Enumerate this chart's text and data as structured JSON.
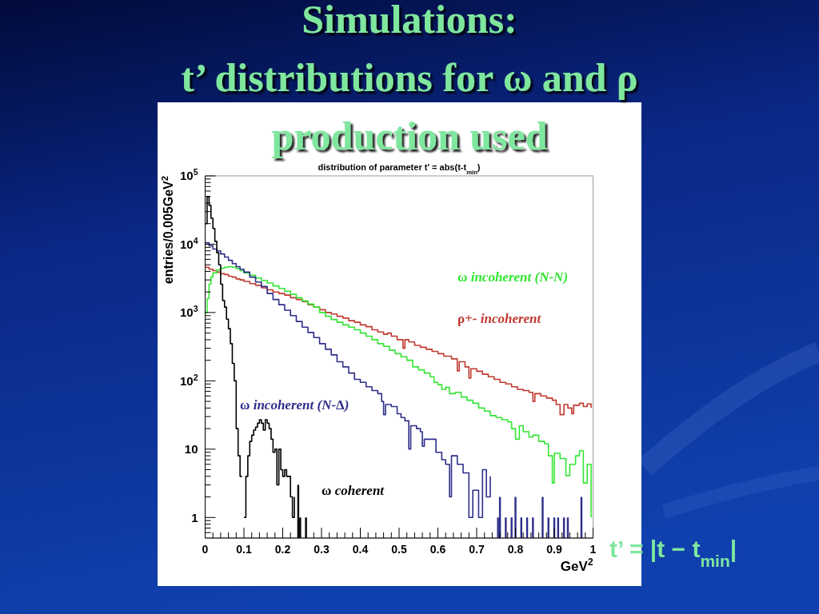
{
  "chart_data": {
    "type": "step",
    "title": "Simulations:\nt’ distributions for ω and ρ\nproduction used",
    "subtitle": "distribution of parameter t' = abs(t-t$_{min}$)",
    "xlabel": "GeV$^{2}$",
    "ylabel": "entries/0.005GeV$^{2}$",
    "annotations": [
      "t’ = |t − t$_{min}$|"
    ],
    "log": true,
    "xlim": [
      0,
      1
    ],
    "ylim": [
      0.5,
      100000
    ],
    "xticks": [
      0,
      {
        "value": 0.02,
        "label": null
      },
      {
        "value": 0.04,
        "label": null
      },
      {
        "value": 0.06,
        "label": null
      },
      {
        "value": 0.08,
        "label": null
      },
      0.1,
      {
        "value": 0.12,
        "label": null
      },
      {
        "value": 0.14,
        "label": null
      },
      {
        "value": 0.16,
        "label": null
      },
      {
        "value": 0.18,
        "label": null
      },
      0.2,
      {
        "value": 0.22,
        "label": null
      },
      {
        "value": 0.24,
        "label": null
      },
      {
        "value": 0.26,
        "label": null
      },
      {
        "value": 0.28,
        "label": null
      },
      0.3,
      {
        "value": 0.32,
        "label": null
      },
      {
        "value": 0.34,
        "label": null
      },
      {
        "value": 0.36,
        "label": null
      },
      {
        "value": 0.38,
        "label": null
      },
      0.4,
      {
        "value": 0.42,
        "label": null
      },
      {
        "value": 0.44,
        "label": null
      },
      {
        "value": 0.46,
        "label": null
      },
      {
        "value": 0.48,
        "label": null
      },
      0.5,
      {
        "value": 0.52,
        "label": null
      },
      {
        "value": 0.54,
        "label": null
      },
      {
        "value": 0.56,
        "label": null
      },
      {
        "value": 0.58,
        "label": null
      },
      0.6,
      {
        "value": 0.62,
        "label": null
      },
      {
        "value": 0.64,
        "label": null
      },
      {
        "value": 0.66,
        "label": null
      },
      {
        "value": 0.68,
        "label": null
      },
      0.7,
      {
        "value": 0.72,
        "label": null
      },
      {
        "value": 0.74,
        "label": null
      },
      {
        "value": 0.76,
        "label": null
      },
      {
        "value": 0.78,
        "label": null
      },
      0.8,
      {
        "value": 0.82,
        "label": null
      },
      {
        "value": 0.84,
        "label": null
      },
      {
        "value": 0.86,
        "label": null
      },
      {
        "value": 0.88,
        "label": null
      },
      0.9,
      {
        "value": 0.92,
        "label": null
      },
      {
        "value": 0.94,
        "label": null
      },
      {
        "value": 0.96,
        "label": null
      },
      {
        "value": 0.98,
        "label": null
      },
      1
    ],
    "yticks": [
      {
        "value": 0.6,
        "label": null
      },
      {
        "value": 0.7,
        "label": null
      },
      {
        "value": 0.8,
        "label": null
      },
      {
        "value": 0.9,
        "label": null
      },
      1,
      {
        "value": 2,
        "label": null
      },
      {
        "value": 3,
        "label": null
      },
      {
        "value": 4,
        "label": null
      },
      {
        "value": 5,
        "label": null
      },
      {
        "value": 6,
        "label": null
      },
      {
        "value": 7,
        "label": null
      },
      {
        "value": 8,
        "label": null
      },
      {
        "value": 9,
        "label": null
      },
      10,
      {
        "value": 20,
        "label": null
      },
      {
        "value": 30,
        "label": null
      },
      {
        "value": 40,
        "label": null
      },
      {
        "value": 50,
        "label": null
      },
      {
        "value": 60,
        "label": null
      },
      {
        "value": 70,
        "label": null
      },
      {
        "value": 80,
        "label": null
      },
      {
        "value": 90,
        "label": null
      },
      {
        "value": 100,
        "label": "10$^{2}$"
      },
      {
        "value": 200,
        "label": null
      },
      {
        "value": 300,
        "label": null
      },
      {
        "value": 400,
        "label": null
      },
      {
        "value": 500,
        "label": null
      },
      {
        "value": 600,
        "label": null
      },
      {
        "value": 700,
        "label": null
      },
      {
        "value": 800,
        "label": null
      },
      {
        "value": 900,
        "label": null
      },
      {
        "value": 1000,
        "label": "10$^{3}$"
      },
      {
        "value": 2000,
        "label": null
      },
      {
        "value": 3000,
        "label": null
      },
      {
        "value": 4000,
        "label": null
      },
      {
        "value": 5000,
        "label": null
      },
      {
        "value": 6000,
        "label": null
      },
      {
        "value": 7000,
        "label": null
      },
      {
        "value": 8000,
        "label": null
      },
      {
        "value": 9000,
        "label": null
      },
      {
        "value": 10000,
        "label": "10$^{4}$"
      },
      {
        "value": 20000,
        "label": null
      },
      {
        "value": 30000,
        "label": null
      },
      {
        "value": 40000,
        "label": null
      },
      {
        "value": 50000,
        "label": null
      },
      {
        "value": 60000,
        "label": null
      },
      {
        "value": 70000,
        "label": null
      },
      {
        "value": 80000,
        "label": null
      },
      {
        "value": 90000,
        "label": null
      },
      {
        "value": 100000,
        "label": "10$^{5}$"
      }
    ],
    "series": [
      {
        "name": "ρ+- incoherent",
        "color": "#c0392f",
        "x": [
          0,
          0.01,
          0.02,
          0.03,
          0.04,
          0.05,
          0.06,
          0.07,
          0.08,
          0.09,
          0.1,
          0.115,
          0.13,
          0.145,
          0.16,
          0.175,
          0.19,
          0.205,
          0.22,
          0.235,
          0.25,
          0.265,
          0.28,
          0.295,
          0.31,
          0.325,
          0.34,
          0.355,
          0.37,
          0.385,
          0.4,
          0.415,
          0.43,
          0.445,
          0.46,
          0.47,
          0.48,
          0.495,
          0.51,
          0.515,
          0.525,
          0.54,
          0.555,
          0.57,
          0.585,
          0.6,
          0.615,
          0.635,
          0.65,
          0.655,
          0.67,
          0.68,
          0.685,
          0.7,
          0.715,
          0.73,
          0.745,
          0.76,
          0.775,
          0.79,
          0.805,
          0.82,
          0.835,
          0.845,
          0.85,
          0.865,
          0.88,
          0.895,
          0.905,
          0.915,
          0.925,
          0.935,
          0.945,
          0.95,
          0.965,
          0.975,
          0.985,
          0.995
        ],
        "values": [
          4600,
          4300,
          4100,
          3900,
          3700,
          3600,
          3400,
          3300,
          3100,
          3000,
          2850,
          2650,
          2500,
          2300,
          2150,
          2000,
          1900,
          1800,
          1650,
          1550,
          1450,
          1300,
          1200,
          1100,
          1000,
          950,
          880,
          830,
          760,
          720,
          660,
          620,
          560,
          520,
          480,
          500,
          450,
          400,
          300,
          400,
          370,
          330,
          310,
          290,
          270,
          250,
          230,
          210,
          140,
          190,
          160,
          110,
          150,
          138,
          125,
          115,
          105,
          95,
          90,
          82,
          75,
          72,
          68,
          50,
          65,
          60,
          56,
          52,
          45,
          32,
          45,
          40,
          33,
          44,
          47,
          42,
          46,
          40
        ]
      },
      {
        "name": "ω incoherent (N-N)",
        "color": "#33e633",
        "x": [
          0,
          0.005,
          0.01,
          0.015,
          0.02,
          0.03,
          0.04,
          0.05,
          0.06,
          0.07,
          0.08,
          0.09,
          0.1,
          0.115,
          0.13,
          0.145,
          0.16,
          0.175,
          0.19,
          0.205,
          0.22,
          0.235,
          0.25,
          0.265,
          0.28,
          0.295,
          0.31,
          0.325,
          0.34,
          0.355,
          0.37,
          0.385,
          0.4,
          0.415,
          0.43,
          0.445,
          0.46,
          0.475,
          0.49,
          0.505,
          0.52,
          0.535,
          0.55,
          0.565,
          0.58,
          0.59,
          0.6,
          0.61,
          0.62,
          0.63,
          0.645,
          0.66,
          0.675,
          0.69,
          0.705,
          0.72,
          0.735,
          0.75,
          0.765,
          0.78,
          0.79,
          0.8,
          0.81,
          0.82,
          0.835,
          0.845,
          0.86,
          0.875,
          0.885,
          0.895,
          0.9,
          0.915,
          0.93,
          0.94,
          0.955,
          0.965,
          0.975,
          0.985,
          0.995
        ],
        "values": [
          1000,
          1600,
          2600,
          3300,
          3800,
          4200,
          4450,
          4600,
          4700,
          4600,
          4400,
          4100,
          3800,
          3500,
          3200,
          2950,
          2700,
          2450,
          2250,
          2050,
          1850,
          1650,
          1480,
          1330,
          1200,
          1000,
          880,
          790,
          720,
          660,
          610,
          560,
          500,
          450,
          400,
          350,
          320,
          280,
          250,
          225,
          200,
          160,
          145,
          130,
          115,
          95,
          88,
          75,
          80,
          65,
          68,
          58,
          52,
          47,
          40,
          36,
          31,
          29,
          27,
          25,
          20,
          14,
          22,
          18,
          15,
          16,
          13,
          12,
          8,
          3.2,
          8.7,
          7.3,
          4.1,
          6,
          8,
          9.5,
          3.2,
          6,
          1
        ]
      },
      {
        "name": "ω incoherent (N-Δ)",
        "color": "#2e2e8a",
        "x": [
          0,
          0.01,
          0.02,
          0.03,
          0.04,
          0.05,
          0.06,
          0.07,
          0.08,
          0.09,
          0.1,
          0.115,
          0.13,
          0.145,
          0.16,
          0.175,
          0.19,
          0.205,
          0.22,
          0.235,
          0.25,
          0.265,
          0.28,
          0.295,
          0.31,
          0.325,
          0.34,
          0.355,
          0.37,
          0.385,
          0.4,
          0.415,
          0.43,
          0.445,
          0.455,
          0.46,
          0.465,
          0.48,
          0.495,
          0.505,
          0.515,
          0.525,
          0.53,
          0.545,
          0.555,
          0.56,
          0.565,
          0.58,
          0.595,
          0.61,
          0.62,
          0.63,
          0.635,
          0.65,
          0.665,
          0.68,
          0.69,
          0.705,
          0.715,
          0.725,
          0.735
        ],
        "values": [
          10500,
          9500,
          8500,
          8000,
          7200,
          6500,
          5800,
          5200,
          4700,
          4300,
          3900,
          3300,
          2800,
          2400,
          1900,
          1550,
          1300,
          1080,
          900,
          740,
          610,
          510,
          430,
          350,
          290,
          240,
          190,
          160,
          130,
          105,
          95,
          82,
          72,
          65,
          50,
          32,
          45,
          42,
          33,
          29,
          26,
          10,
          22,
          20,
          18,
          11,
          14,
          14,
          9,
          7,
          6,
          2,
          8,
          6,
          4.5,
          1,
          2.5,
          1,
          5,
          2,
          4
        ]
      },
      {
        "name": "ω coherent",
        "color": "#000000",
        "x": [
          0,
          0.005,
          0.01,
          0.015,
          0.02,
          0.025,
          0.03,
          0.035,
          0.04,
          0.045,
          0.05,
          0.055,
          0.06,
          0.065,
          0.07,
          0.075,
          0.08,
          0.085,
          0.09,
          0.095,
          0.1,
          0.105,
          0.11,
          0.115,
          0.12,
          0.125,
          0.13,
          0.135,
          0.14,
          0.145,
          0.15,
          0.155,
          0.16,
          0.165,
          0.17,
          0.175,
          0.18,
          0.185,
          0.19,
          0.195,
          0.2,
          0.205,
          0.21,
          0.215,
          0.22,
          0.225,
          0.23
        ],
        "values": [
          20000,
          50000,
          37000,
          24000,
          17000,
          11000,
          7500,
          5000,
          2600,
          1500,
          1200,
          800,
          580,
          350,
          180,
          100,
          20,
          8,
          4,
          null,
          1,
          4,
          8,
          13,
          16,
          19,
          21,
          24,
          27,
          24,
          19,
          27,
          24,
          20,
          14,
          9,
          10,
          3,
          10,
          5,
          4,
          5,
          4,
          4,
          2,
          1,
          2
        ]
      },
      {
        "type": "bar",
        "color": "#2e2e8a",
        "x": [
          0.755,
          0.76,
          0.775,
          0.79,
          0.8,
          0.815,
          0.83,
          0.845,
          0.87,
          0.885,
          0.9,
          0.91,
          0.925,
          0.935,
          0.97
        ],
        "values": [
          1,
          2,
          1,
          1,
          2,
          1,
          1,
          1,
          2,
          1,
          1,
          1,
          1,
          1,
          2
        ]
      },
      {
        "type": "bar",
        "color": "#000000",
        "x": [
          0.24,
          0.245,
          0.26
        ],
        "values": [
          3,
          1,
          1
        ]
      }
    ]
  }
}
